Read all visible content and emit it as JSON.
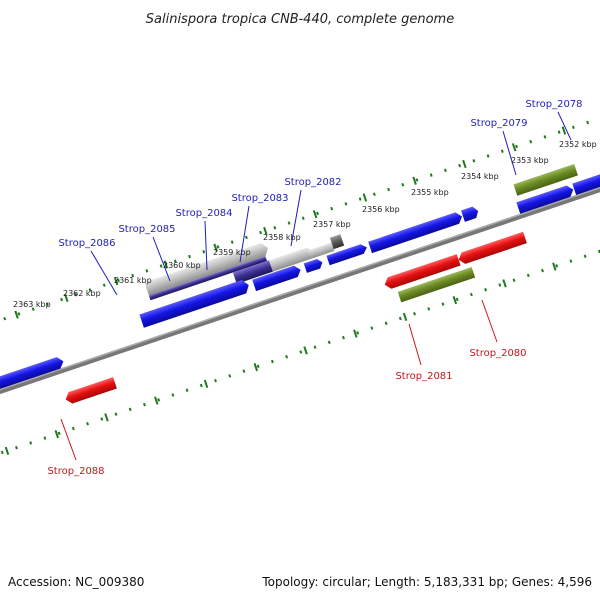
{
  "title": "Salinispora tropica CNB-440, complete genome",
  "footer": {
    "accession": "Accession: NC_009380",
    "topology": "Topology: circular; Length: 5,183,331 bp; Genes: 4,596"
  },
  "scale_labels": [
    "2352 kbp",
    "2353 kbp",
    "2354 kbp",
    "2355 kbp",
    "2356 kbp",
    "2357 kbp",
    "2358 kbp",
    "2359 kbp",
    "2360 kbp",
    "2361 kbp",
    "2362 kbp",
    "2363 kbp"
  ],
  "genes_top": [
    "Strop_2078",
    "Strop_2079",
    "Strop_2082",
    "Strop_2083",
    "Strop_2084",
    "Strop_2085",
    "Strop_2086"
  ],
  "genes_bottom": [
    "Strop_2080",
    "Strop_2081",
    "Strop_2088"
  ],
  "colors": {
    "backbone": "#777777",
    "forward_blue": "#1212e0",
    "reverse_red": "#e41010",
    "olive": "#6b8a23",
    "grey": "#b8b8b8",
    "navy": "#3a2f8c",
    "tick_green": "#1f7a1f"
  }
}
